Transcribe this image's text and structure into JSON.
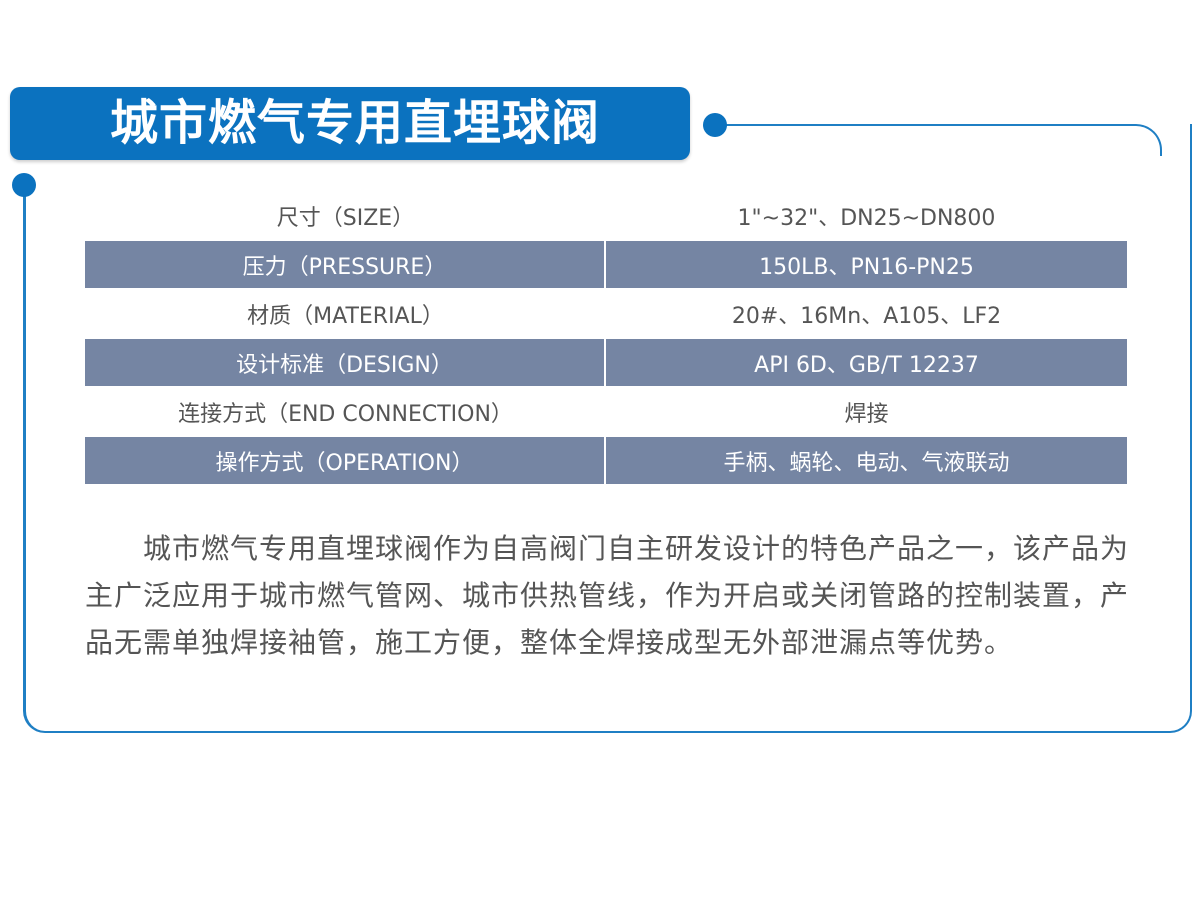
{
  "title": "城市燃气专用直埋球阀",
  "colors": {
    "banner": "#0b72bf",
    "row_shade": "#7585a3",
    "frame": "#1f7fc4"
  },
  "specs": [
    {
      "label": "尺寸（SIZE）",
      "value": "1\"~32\"、DN25~DN800"
    },
    {
      "label": "压力（PRESSURE）",
      "value": "150LB、PN16-PN25"
    },
    {
      "label": "材质（MATERIAL）",
      "value": "20#、16Mn、A105、LF2"
    },
    {
      "label": "设计标准（DESIGN）",
      "value": "API 6D、GB/T 12237"
    },
    {
      "label": "连接方式（END CONNECTION）",
      "value": "焊接"
    },
    {
      "label": "操作方式（OPERATION）",
      "value": "手柄、蜗轮、电动、气液联动"
    }
  ],
  "description": "城市燃气专用直埋球阀作为自高阀门自主研发设计的特色产品之一，该产品为主广泛应用于城市燃气管网、城市供热管线，作为开启或关闭管路的控制装置，产品无需单独焊接袖管，施工方便，整体全焊接成型无外部泄漏点等优势。"
}
